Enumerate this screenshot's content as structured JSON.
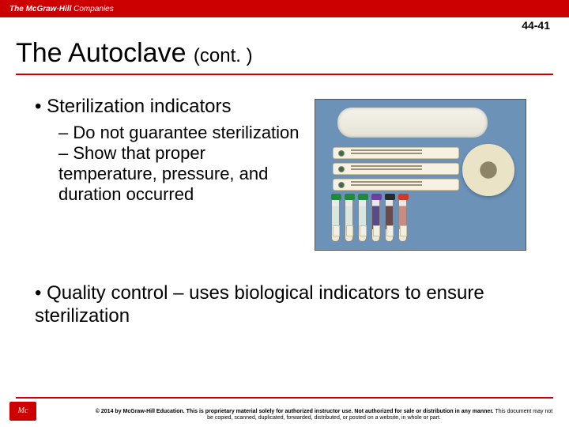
{
  "header": {
    "brand_the": "The ",
    "brand_main": "McGraw·Hill ",
    "brand_companies": "Companies",
    "slide_number": "44-41",
    "brand_color": "#cc0000"
  },
  "title": {
    "main": "The Autoclave ",
    "cont": "(cont. )"
  },
  "content": {
    "L1_a": "Sterilization indicators",
    "L2_a": "– Do not guarantee sterilization",
    "L2_b": "– Show that proper temperature, pressure, and duration occurred",
    "L1_b": "Quality control – uses biological indicators to ensure sterilization"
  },
  "figure": {
    "background_color": "#6d92b8",
    "items": {
      "pouch": "sterilization-pouch",
      "indicator_strips": 3,
      "autoclave_tape_roll": 1,
      "tubes": [
        {
          "cap": "#1f8a3b",
          "body": "#d9e6de"
        },
        {
          "cap": "#1f8a3b",
          "body": "#d9e6de"
        },
        {
          "cap": "#1f8a3b",
          "body": "#d9e6de"
        },
        {
          "cap": "#6a3fa0",
          "body": "#5b4a87"
        },
        {
          "cap": "#2a2a2a",
          "body": "#6a4b4b"
        },
        {
          "cap": "#cc3a2a",
          "body": "#c98b7f"
        }
      ]
    }
  },
  "footer": {
    "logo_text": "Mc\nH",
    "copyright_bold": "© 2014 by McGraw-Hill Education. This is proprietary material solely for authorized instructor use. Not authorized for sale or distribution in any manner.",
    "copyright_rest": " This document may not be copied, scanned, duplicated, forwarded, distributed, or posted on a website, in whole or part."
  }
}
